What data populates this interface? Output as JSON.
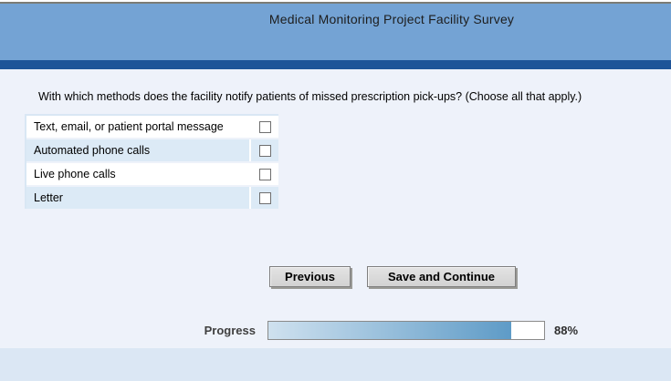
{
  "header": {
    "title": "Medical Monitoring Project Facility Survey"
  },
  "question": {
    "text": "With which methods does the facility notify patients of missed prescription pick-ups? (Choose all that apply.)"
  },
  "options": [
    {
      "label": "Text, email, or patient portal message",
      "checked": false
    },
    {
      "label": "Automated phone calls",
      "checked": false
    },
    {
      "label": "Live phone calls",
      "checked": false
    },
    {
      "label": "Letter",
      "checked": false
    }
  ],
  "buttons": {
    "previous": "Previous",
    "save_continue": "Save and Continue"
  },
  "progress": {
    "label": "Progress",
    "percent": 88,
    "percent_label": "88%"
  },
  "colors": {
    "banner": "#74a3d4",
    "stripe": "#1e5498",
    "page_background": "#eef2fa",
    "row_alternate": "#dceaf6",
    "footer_strip": "#dbe7f4",
    "progress_fill_start": "#cfe1ef",
    "progress_fill_end": "#5e9bc7"
  }
}
